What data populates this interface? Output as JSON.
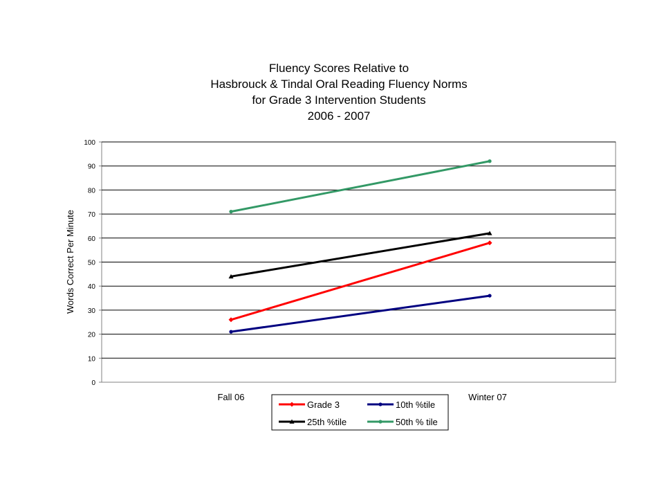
{
  "chart_data": {
    "type": "line",
    "title": [
      "Fluency Scores Relative to",
      "Hasbrouck & Tindal Oral Reading Fluency Norms",
      "for Grade 3 Intervention Students",
      "2006 - 2007"
    ],
    "xlabel": "",
    "ylabel": "Words Correct Per Minute",
    "categories": [
      "Fall 06",
      "Winter 07"
    ],
    "ylim": [
      0,
      100
    ],
    "yticks": [
      0,
      10,
      20,
      30,
      40,
      50,
      60,
      70,
      80,
      90,
      100
    ],
    "ytick_labels": [
      "0",
      "10",
      "20",
      "30",
      "40",
      "50",
      "60",
      "70",
      "80",
      "90",
      "100"
    ],
    "grid": true,
    "legend_position": "bottom",
    "series": [
      {
        "name": "Grade 3",
        "values": [
          26,
          58
        ],
        "color": "#ff0000",
        "marker": "diamond"
      },
      {
        "name": "10th %tile",
        "values": [
          21,
          36
        ],
        "color": "#000080",
        "marker": "circle"
      },
      {
        "name": "25th %tile",
        "values": [
          44,
          62
        ],
        "color": "#000000",
        "marker": "triangle"
      },
      {
        "name": "50th % tile",
        "values": [
          71,
          92
        ],
        "color": "#339966",
        "marker": "circle"
      }
    ]
  }
}
